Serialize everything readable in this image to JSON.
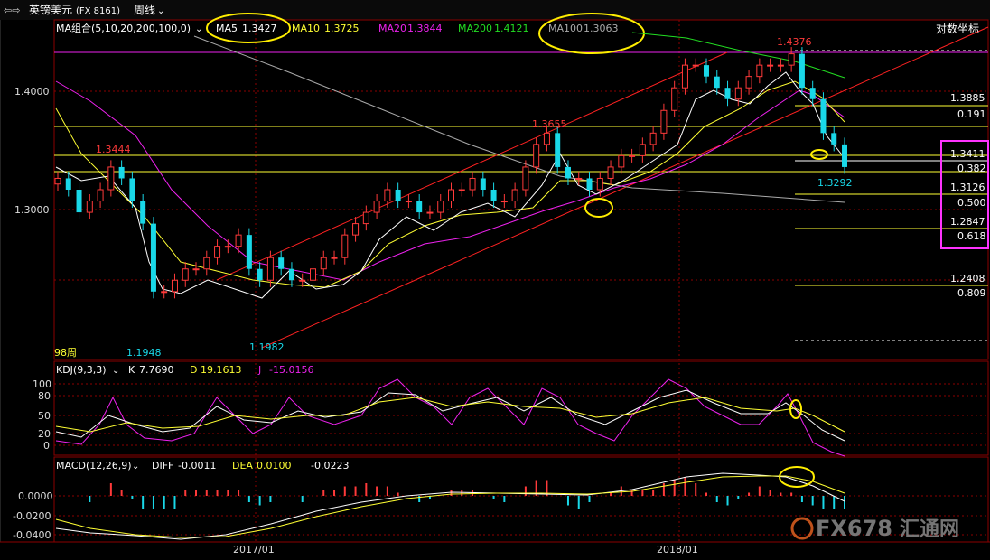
{
  "header": {
    "nav_icon": "back-forward-arrows-icon",
    "title": "英镑美元",
    "code": "(FX 8161)",
    "period": "周线",
    "dropdown_icon": "chevron-down-icon"
  },
  "colors": {
    "background": "#000000",
    "up": "#ff3a3a",
    "down": "#19d8e8",
    "ma5": "#ffffff",
    "ma10": "#ffff33",
    "ma20": "#ee22ee",
    "ma200": "#22dd22",
    "ma100": "#aaaaaa",
    "channel": "#ff2222",
    "grid": "#8b0000",
    "highlight_circle": "#ffee00",
    "highlight_box": "#ff33ff"
  },
  "chart_data": [
    {
      "type": "candlestick",
      "ma_group_label": "MA组合(5,10,20,200,100,0)",
      "ma_dropdown_icon": "chevron-down-icon",
      "ma_legend": [
        {
          "name": "MA5",
          "value": "1.3427",
          "color": "#ffffff"
        },
        {
          "name": "MA10",
          "value": "1.3725",
          "color": "#ffff33"
        },
        {
          "name": "MA20",
          "value": "1.3844",
          "color": "#ee22ee"
        },
        {
          "name": "MA200",
          "value": "1.4121",
          "color": "#22dd22"
        },
        {
          "name": "MA100",
          "value": "1.3063",
          "color": "#aaaaaa"
        }
      ],
      "scale_mode_label": "对数坐标",
      "y_ticks": [
        "1.4000",
        "1.3000"
      ],
      "ylim": [
        1.16,
        1.46
      ],
      "x_ticks": [
        "2017/01",
        "2018/01"
      ],
      "bars_count_label": "98周",
      "peak_labels": [
        {
          "text": "1.3444",
          "color": "up"
        },
        {
          "text": "1.3655",
          "color": "up"
        },
        {
          "text": "1.4376",
          "color": "up"
        },
        {
          "text": "1.1948",
          "color": "down"
        },
        {
          "text": "1.1982",
          "color": "down"
        },
        {
          "text": "1.3292",
          "color": "down"
        }
      ],
      "fibonacci_levels": [
        {
          "price": "1.3885",
          "ratio": "0.191"
        },
        {
          "price": "1.3411",
          "ratio": "0.382"
        },
        {
          "price": "1.3126",
          "ratio": "0.500"
        },
        {
          "price": "1.2847",
          "ratio": "0.618"
        },
        {
          "price": "1.2408",
          "ratio": "0.809"
        }
      ],
      "close_trend": [
        1.32,
        1.31,
        1.29,
        1.3,
        1.31,
        1.33,
        1.32,
        1.3,
        1.28,
        1.22,
        1.22,
        1.23,
        1.24,
        1.24,
        1.25,
        1.26,
        1.26,
        1.27,
        1.24,
        1.23,
        1.25,
        1.24,
        1.23,
        1.23,
        1.24,
        1.25,
        1.25,
        1.27,
        1.28,
        1.29,
        1.3,
        1.31,
        1.3,
        1.3,
        1.29,
        1.29,
        1.3,
        1.31,
        1.31,
        1.32,
        1.31,
        1.3,
        1.3,
        1.31,
        1.33,
        1.35,
        1.36,
        1.33,
        1.32,
        1.32,
        1.31,
        1.32,
        1.33,
        1.34,
        1.34,
        1.35,
        1.36,
        1.38,
        1.4,
        1.42,
        1.42,
        1.41,
        1.4,
        1.39,
        1.4,
        1.41,
        1.42,
        1.42,
        1.42,
        1.43,
        1.4,
        1.39,
        1.36,
        1.35,
        1.33
      ]
    },
    {
      "type": "line",
      "label": "KDJ(9,3,3)",
      "dropdown_icon": "chevron-down-icon",
      "series": [
        {
          "name": "K",
          "value": "7.7690",
          "color": "#ffffff"
        },
        {
          "name": "D",
          "value": "19.1613",
          "color": "#ffff33"
        },
        {
          "name": "J",
          "value": "-15.0156",
          "color": "#ee22ee"
        }
      ],
      "y_ticks": [
        "100",
        "80",
        "50",
        "20",
        "0"
      ],
      "ylim": [
        -10,
        110
      ]
    },
    {
      "type": "bar",
      "label": "MACD(12,26,9)",
      "dropdown_icon": "chevron-down-icon",
      "series": [
        {
          "name": "DIFF",
          "value": "-0.0011",
          "color": "#ffffff"
        },
        {
          "name": "DEA",
          "value": "0.0100",
          "color": "#ffff33"
        },
        {
          "name": "MACD",
          "value": "-0.0223",
          "color": "#19d8e8"
        }
      ],
      "y_ticks": [
        "0.0000",
        "-0.0200",
        "-0.0400"
      ],
      "ylim": [
        -0.05,
        0.03
      ]
    }
  ],
  "watermark": {
    "text": "FX678",
    "cn": "汇通网"
  }
}
